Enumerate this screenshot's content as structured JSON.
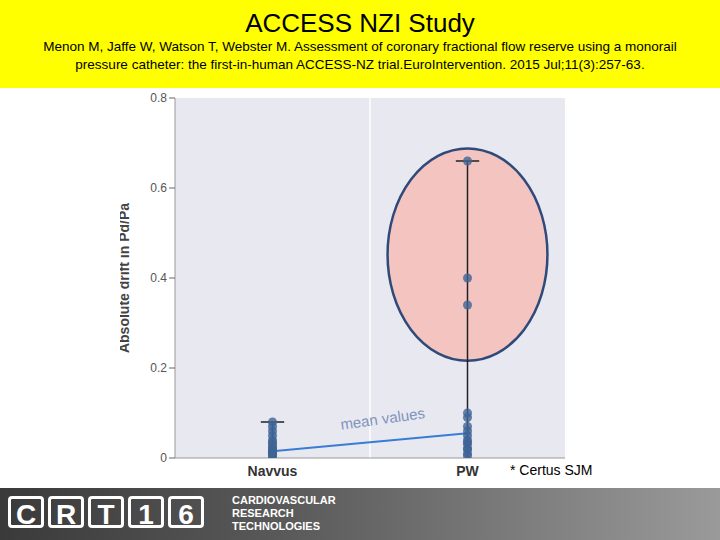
{
  "header": {
    "title": "ACCESS NZI Study",
    "citation": [
      "Menon M, Jaffe W, Watson T, Webster M. Assessment of coronary fractional flow  reserve using a monorail",
      "pressure catheter: the first-in-human ACCESS-NZ trial.EuroIntervention. 2015 Jul;11(3):257-63."
    ]
  },
  "chart_data": {
    "type": "scatter",
    "categories": [
      "Navvus",
      "PW"
    ],
    "values": [
      [
        0.0,
        0.005,
        0.008,
        0.01,
        0.012,
        0.015,
        0.02,
        0.02,
        0.025,
        0.03,
        0.035,
        0.04,
        0.05,
        0.06,
        0.07,
        0.08
      ],
      [
        0.005,
        0.01,
        0.02,
        0.02,
        0.03,
        0.035,
        0.04,
        0.05,
        0.06,
        0.07,
        0.09,
        0.1,
        0.34,
        0.4,
        0.66
      ]
    ],
    "means": [
      0.015,
      0.055
    ],
    "range_max": [
      0.08,
      0.66
    ],
    "ylabel": "Absolute drift in Pd/Pa",
    "ylim": [
      0,
      0.8
    ],
    "yticks": [
      0,
      0.2,
      0.4,
      0.6,
      0.8
    ],
    "grid": false,
    "color": "#3f6496",
    "annotation": "mean values",
    "note": "* Certus SJM"
  },
  "footer": {
    "logo": [
      "C",
      "R",
      "T",
      "1",
      "6"
    ],
    "text": [
      "CARDIOVASCULAR",
      "RESEARCH",
      "TECHNOLOGIES"
    ]
  }
}
